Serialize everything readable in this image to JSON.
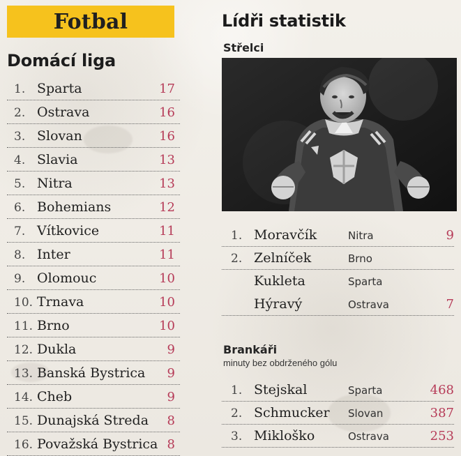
{
  "category": "Fotbal",
  "left_panel": {
    "title": "Domácí liga",
    "rows": [
      {
        "rank": "1.",
        "team": "Sparta",
        "points": "17"
      },
      {
        "rank": "2.",
        "team": "Ostrava",
        "points": "16"
      },
      {
        "rank": "3.",
        "team": "Slovan",
        "points": "16"
      },
      {
        "rank": "4.",
        "team": "Slavia",
        "points": "13"
      },
      {
        "rank": "5.",
        "team": "Nitra",
        "points": "13"
      },
      {
        "rank": "6.",
        "team": "Bohemians",
        "points": "12"
      },
      {
        "rank": "7.",
        "team": "Vítkovice",
        "points": "11"
      },
      {
        "rank": "8.",
        "team": "Inter",
        "points": "11"
      },
      {
        "rank": "9.",
        "team": "Olomouc",
        "points": "10"
      },
      {
        "rank": "10.",
        "team": "Trnava",
        "points": "10"
      },
      {
        "rank": "11.",
        "team": "Brno",
        "points": "10"
      },
      {
        "rank": "12.",
        "team": "Dukla",
        "points": "9"
      },
      {
        "rank": "13.",
        "team": "Banská Bystrica",
        "points": "9"
      },
      {
        "rank": "14.",
        "team": "Cheb",
        "points": "9"
      },
      {
        "rank": "15.",
        "team": "Dunajská Streda",
        "points": "8"
      },
      {
        "rank": "16.",
        "team": "Považská Bystrica",
        "points": "8"
      }
    ]
  },
  "right_panel": {
    "title": "Lídři statistik",
    "scorers_title": "Střelci",
    "scorers": [
      {
        "rank": "1.",
        "name": "Moravčík",
        "club": "Nitra",
        "value": "9"
      },
      {
        "rank": "2.",
        "name": "Zelníček",
        "club": "Brno",
        "value": ""
      },
      {
        "rank": "",
        "name": "Kukleta",
        "club": "Sparta",
        "value": ""
      },
      {
        "rank": "",
        "name": "Hýravý",
        "club": "Ostrava",
        "value": "7"
      }
    ],
    "goalkeepers_title": "Brankáři",
    "goalkeepers_subtitle": "minuty bez obdrženého gólu",
    "goalkeepers": [
      {
        "rank": "1.",
        "name": "Stejskal",
        "club": "Sparta",
        "value": "468"
      },
      {
        "rank": "2.",
        "name": "Schmucker",
        "club": "Slovan",
        "value": "387"
      },
      {
        "rank": "3.",
        "name": "Mikloško",
        "club": "Ostrava",
        "value": "253"
      }
    ]
  },
  "colors": {
    "accent_yellow": "#f6c21d",
    "points_red": "#b63b58",
    "paper": "#efebe4"
  }
}
